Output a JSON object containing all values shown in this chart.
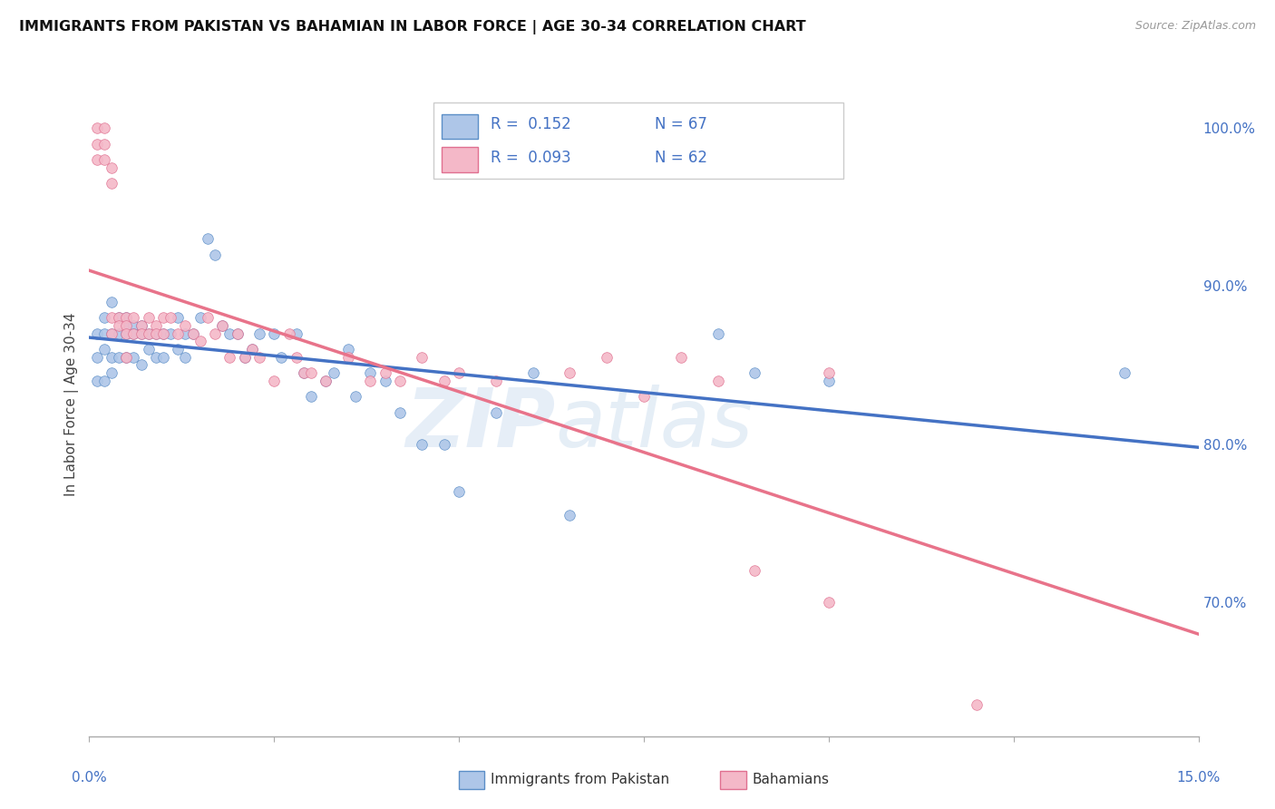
{
  "title": "IMMIGRANTS FROM PAKISTAN VS BAHAMIAN IN LABOR FORCE | AGE 30-34 CORRELATION CHART",
  "source": "Source: ZipAtlas.com",
  "ylabel": "In Labor Force | Age 30-34",
  "right_yticks": [
    "100.0%",
    "90.0%",
    "80.0%",
    "70.0%"
  ],
  "right_ytick_vals": [
    1.0,
    0.9,
    0.8,
    0.7
  ],
  "xmin": 0.0,
  "xmax": 0.15,
  "ymin": 0.615,
  "ymax": 1.035,
  "series1_label": "Immigrants from Pakistan",
  "series1_color": "#aec6e8",
  "series1_edge_color": "#5b8ec7",
  "series1_line_color": "#4472c4",
  "series1_R": 0.152,
  "series1_N": 67,
  "series2_label": "Bahamians",
  "series2_color": "#f4b8c8",
  "series2_edge_color": "#e07090",
  "series2_line_color": "#e8738a",
  "series2_R": 0.093,
  "series2_N": 62,
  "stat_color": "#4472c4",
  "background_color": "#ffffff",
  "grid_color": "#dddddd",
  "series1_x": [
    0.001,
    0.001,
    0.001,
    0.002,
    0.002,
    0.002,
    0.002,
    0.003,
    0.003,
    0.003,
    0.003,
    0.004,
    0.004,
    0.004,
    0.005,
    0.005,
    0.005,
    0.005,
    0.006,
    0.006,
    0.006,
    0.007,
    0.007,
    0.007,
    0.008,
    0.008,
    0.009,
    0.009,
    0.01,
    0.01,
    0.011,
    0.012,
    0.012,
    0.013,
    0.013,
    0.014,
    0.015,
    0.016,
    0.017,
    0.018,
    0.019,
    0.02,
    0.021,
    0.022,
    0.023,
    0.025,
    0.026,
    0.028,
    0.029,
    0.03,
    0.032,
    0.033,
    0.035,
    0.036,
    0.038,
    0.04,
    0.042,
    0.045,
    0.048,
    0.05,
    0.055,
    0.06,
    0.065,
    0.085,
    0.09,
    0.1,
    0.14
  ],
  "series1_y": [
    0.87,
    0.855,
    0.84,
    0.88,
    0.87,
    0.86,
    0.84,
    0.89,
    0.87,
    0.855,
    0.845,
    0.88,
    0.87,
    0.855,
    0.88,
    0.875,
    0.87,
    0.855,
    0.875,
    0.87,
    0.855,
    0.875,
    0.87,
    0.85,
    0.87,
    0.86,
    0.87,
    0.855,
    0.87,
    0.855,
    0.87,
    0.88,
    0.86,
    0.87,
    0.855,
    0.87,
    0.88,
    0.93,
    0.92,
    0.875,
    0.87,
    0.87,
    0.855,
    0.86,
    0.87,
    0.87,
    0.855,
    0.87,
    0.845,
    0.83,
    0.84,
    0.845,
    0.86,
    0.83,
    0.845,
    0.84,
    0.82,
    0.8,
    0.8,
    0.77,
    0.82,
    0.845,
    0.755,
    0.87,
    0.845,
    0.84,
    0.845
  ],
  "series2_x": [
    0.001,
    0.001,
    0.001,
    0.002,
    0.002,
    0.002,
    0.003,
    0.003,
    0.003,
    0.003,
    0.004,
    0.004,
    0.005,
    0.005,
    0.005,
    0.005,
    0.006,
    0.006,
    0.007,
    0.007,
    0.008,
    0.008,
    0.009,
    0.009,
    0.01,
    0.01,
    0.011,
    0.012,
    0.013,
    0.014,
    0.015,
    0.016,
    0.017,
    0.018,
    0.019,
    0.02,
    0.021,
    0.022,
    0.023,
    0.025,
    0.027,
    0.028,
    0.029,
    0.03,
    0.032,
    0.035,
    0.038,
    0.04,
    0.042,
    0.045,
    0.048,
    0.05,
    0.055,
    0.065,
    0.07,
    0.075,
    0.08,
    0.085,
    0.09,
    0.1,
    0.1,
    0.12
  ],
  "series2_y": [
    1.0,
    0.99,
    0.98,
    1.0,
    0.99,
    0.98,
    0.975,
    0.965,
    0.88,
    0.87,
    0.88,
    0.875,
    0.88,
    0.875,
    0.87,
    0.855,
    0.88,
    0.87,
    0.875,
    0.87,
    0.88,
    0.87,
    0.875,
    0.87,
    0.88,
    0.87,
    0.88,
    0.87,
    0.875,
    0.87,
    0.865,
    0.88,
    0.87,
    0.875,
    0.855,
    0.87,
    0.855,
    0.86,
    0.855,
    0.84,
    0.87,
    0.855,
    0.845,
    0.845,
    0.84,
    0.855,
    0.84,
    0.845,
    0.84,
    0.855,
    0.84,
    0.845,
    0.84,
    0.845,
    0.855,
    0.83,
    0.855,
    0.84,
    0.72,
    0.7,
    0.845,
    0.635
  ]
}
